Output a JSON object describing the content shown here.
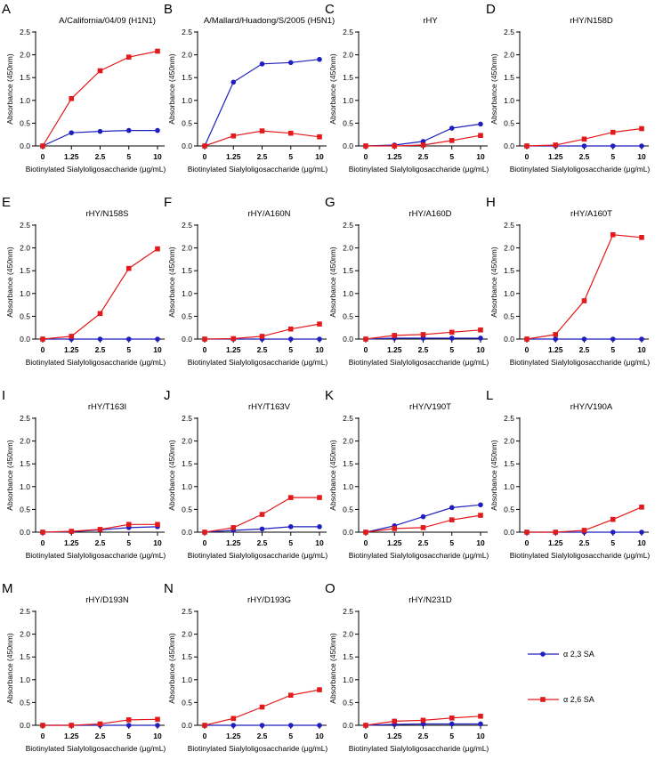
{
  "chart_data": {
    "type": "line",
    "categories": [
      "0",
      "1.25",
      "2.5",
      "5",
      "10"
    ],
    "xlabel": "Biotinylated Sialyloligosaccharide (μg/mL)",
    "yticks": [
      "0.0",
      "0.5",
      "1.0",
      "1.5",
      "2.0",
      "2.5"
    ],
    "ylim": [
      0,
      2.5
    ],
    "legend": [
      {
        "name": "α 2,3 SA",
        "color": "#1f1fbf",
        "marker": "circle"
      },
      {
        "name": "α 2,6 SA",
        "color": "#e31a1c",
        "marker": "square"
      }
    ],
    "panels": [
      {
        "letter": "A",
        "title": "A/California/04/09 (H1N1)",
        "ylabel": "Absorbance (450nm)",
        "series": [
          {
            "name": "α 2,3 SA",
            "values": [
              0.0,
              0.29,
              0.32,
              0.34,
              0.34
            ]
          },
          {
            "name": "α 2,6 SA",
            "values": [
              0.0,
              1.04,
              1.65,
              1.95,
              2.08
            ]
          }
        ]
      },
      {
        "letter": "B",
        "title": "A/Mallard/Huadong/S/2005 (H5N1)",
        "ylabel": "Absorbance (450nm)",
        "series": [
          {
            "name": "α 2,3 SA",
            "values": [
              0.0,
              1.4,
              1.8,
              1.83,
              1.9
            ]
          },
          {
            "name": "α 2,6 SA",
            "values": [
              0.0,
              0.22,
              0.33,
              0.28,
              0.2
            ]
          }
        ]
      },
      {
        "letter": "C",
        "title": "rHY",
        "ylabel": "Absorbance (450nm)",
        "series": [
          {
            "name": "α 2,3 SA",
            "values": [
              0.0,
              0.02,
              0.1,
              0.39,
              0.48
            ]
          },
          {
            "name": "α 2,6 SA",
            "values": [
              0.0,
              0.0,
              0.02,
              0.12,
              0.23
            ]
          }
        ]
      },
      {
        "letter": "D",
        "title": "rHY/N158D",
        "ylabel": "Absorbance (450nm)",
        "series": [
          {
            "name": "α 2,3 SA",
            "values": [
              0.0,
              0.0,
              0.0,
              0.0,
              0.0
            ]
          },
          {
            "name": "α 2,6 SA",
            "values": [
              0.0,
              0.02,
              0.15,
              0.3,
              0.38
            ]
          }
        ]
      },
      {
        "letter": "E",
        "title": "rHY/N158S",
        "ylabel": "Absorbance (450nm)",
        "series": [
          {
            "name": "α 2,3 SA",
            "values": [
              0.0,
              0.0,
              0.0,
              0.0,
              0.0
            ]
          },
          {
            "name": "α 2,6 SA",
            "values": [
              0.0,
              0.06,
              0.56,
              1.55,
              1.98
            ]
          }
        ]
      },
      {
        "letter": "F",
        "title": "rHY/A160N",
        "ylabel": "Absorbance (450nm)",
        "series": [
          {
            "name": "α 2,3 SA",
            "values": [
              0.0,
              0.0,
              0.0,
              0.0,
              0.0
            ]
          },
          {
            "name": "α 2,6 SA",
            "values": [
              0.0,
              0.01,
              0.06,
              0.22,
              0.33
            ]
          }
        ]
      },
      {
        "letter": "G",
        "title": "rHY/A160D",
        "ylabel": "Absorbance (450nm)",
        "series": [
          {
            "name": "α 2,3 SA",
            "values": [
              0.0,
              0.02,
              0.02,
              0.02,
              0.02
            ]
          },
          {
            "name": "α 2,6 SA",
            "values": [
              0.0,
              0.08,
              0.1,
              0.15,
              0.2
            ]
          }
        ]
      },
      {
        "letter": "H",
        "title": "rHY/A160T",
        "ylabel": "Absorbance (450nm)",
        "series": [
          {
            "name": "α 2,3 SA",
            "values": [
              0.0,
              0.0,
              0.0,
              0.0,
              0.0
            ]
          },
          {
            "name": "α 2,6 SA",
            "values": [
              0.0,
              0.1,
              0.84,
              2.29,
              2.23
            ]
          }
        ]
      },
      {
        "letter": "I",
        "title": "rHY/T163I",
        "ylabel": "Absorbance (450nm)",
        "series": [
          {
            "name": "α 2,3 SA",
            "values": [
              0.0,
              0.01,
              0.05,
              0.1,
              0.12
            ]
          },
          {
            "name": "α 2,6 SA",
            "values": [
              0.0,
              0.02,
              0.06,
              0.17,
              0.17
            ]
          }
        ]
      },
      {
        "letter": "J",
        "title": "rHY/T163V",
        "ylabel": "Absorbance (450nm)",
        "series": [
          {
            "name": "α 2,3 SA",
            "values": [
              0.0,
              0.04,
              0.07,
              0.12,
              0.12
            ]
          },
          {
            "name": "α 2,6 SA",
            "values": [
              0.0,
              0.1,
              0.39,
              0.76,
              0.76
            ]
          }
        ]
      },
      {
        "letter": "K",
        "title": "rHY/V190T",
        "ylabel": "Absorbance (450nm)",
        "series": [
          {
            "name": "α 2,3 SA",
            "values": [
              0.0,
              0.14,
              0.34,
              0.54,
              0.6
            ]
          },
          {
            "name": "α 2,6 SA",
            "values": [
              0.0,
              0.08,
              0.1,
              0.27,
              0.37
            ]
          }
        ]
      },
      {
        "letter": "L",
        "title": "rHY/V190A",
        "ylabel": "Absorbance (450nm)",
        "series": [
          {
            "name": "α 2,3 SA",
            "values": [
              0.0,
              0.0,
              0.0,
              0.0,
              0.0
            ]
          },
          {
            "name": "α 2,6 SA",
            "values": [
              0.0,
              0.0,
              0.04,
              0.28,
              0.55
            ]
          }
        ]
      },
      {
        "letter": "M",
        "title": "rHY/D193N",
        "ylabel": "Absorbance (450nm)",
        "series": [
          {
            "name": "α 2,3 SA",
            "values": [
              0.0,
              0.0,
              0.0,
              0.0,
              0.0
            ]
          },
          {
            "name": "α 2,6 SA",
            "values": [
              0.0,
              0.0,
              0.03,
              0.12,
              0.13
            ]
          }
        ]
      },
      {
        "letter": "N",
        "title": "rHY/D193G",
        "ylabel": "Absorbance (450nm)",
        "series": [
          {
            "name": "α 2,3 SA",
            "values": [
              0.0,
              0.0,
              0.0,
              0.0,
              0.0
            ]
          },
          {
            "name": "α 2,6 SA",
            "values": [
              0.0,
              0.15,
              0.4,
              0.66,
              0.78
            ]
          }
        ]
      },
      {
        "letter": "O",
        "title": "rHY/N231D",
        "ylabel": "Absorbance (450nm)",
        "series": [
          {
            "name": "α 2,3 SA",
            "values": [
              0.0,
              0.02,
              0.03,
              0.03,
              0.03
            ]
          },
          {
            "name": "α 2,6 SA",
            "values": [
              0.0,
              0.09,
              0.11,
              0.16,
              0.2
            ]
          }
        ]
      }
    ]
  }
}
